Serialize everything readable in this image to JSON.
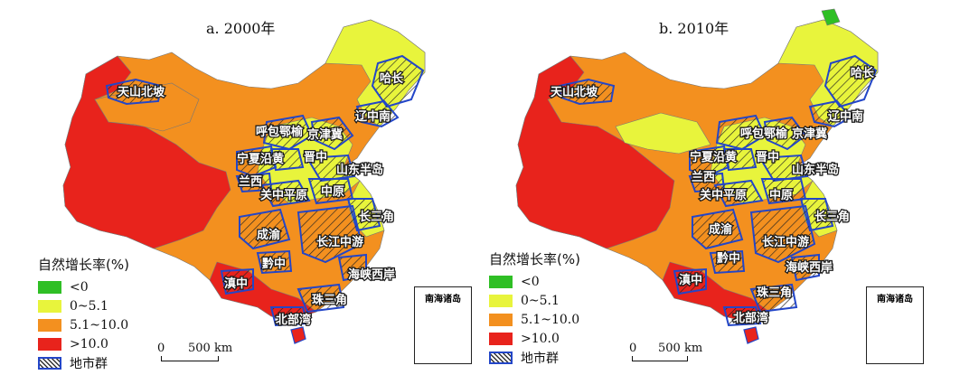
{
  "colors": {
    "neg": "#2fbf25",
    "low": "#e8f43c",
    "mid": "#f3901f",
    "high": "#e8231c",
    "boundary": "#2346c8",
    "background": "#ffffff"
  },
  "legend": {
    "title": "自然增长率(%)",
    "items": [
      {
        "label": "<0",
        "color": "#2fbf25"
      },
      {
        "label": "0~5.1",
        "color": "#e8f43c"
      },
      {
        "label": "5.1~10.0",
        "color": "#f3901f"
      },
      {
        "label": ">10.0",
        "color": "#e8231c"
      },
      {
        "label": "地市群",
        "color": "hatch"
      }
    ]
  },
  "scale": {
    "zero": "0",
    "label": "500 km"
  },
  "inset_title": "南海诸岛",
  "panels": [
    {
      "title": "a. 2000年",
      "labels": [
        "天山北坡",
        "哈长",
        "辽中南",
        "呼包鄂榆",
        "京津冀",
        "宁夏沿黄",
        "晋中",
        "山东半岛",
        "兰西",
        "关中平原",
        "中原",
        "长三角",
        "成渝",
        "长江中游",
        "黔中",
        "海峡西岸",
        "滇中",
        "珠三角",
        "北部湾"
      ]
    },
    {
      "title": "b. 2010年",
      "labels": [
        "天山北坡",
        "哈长",
        "辽中南",
        "呼包鄂榆",
        "京津冀",
        "宁夏沿黄",
        "晋中",
        "山东半岛",
        "兰西",
        "关中平原",
        "中原",
        "长三角",
        "成渝",
        "长江中游",
        "黔中",
        "海峡西岸",
        "滇中",
        "珠三角",
        "北部湾"
      ]
    }
  ]
}
